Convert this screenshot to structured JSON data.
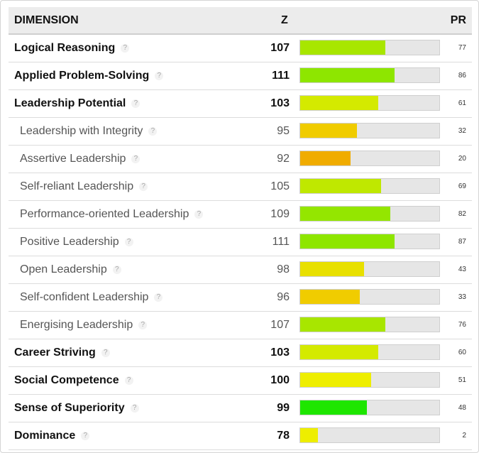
{
  "header": {
    "dimension": "DIMENSION",
    "z": "Z",
    "pr": "PR"
  },
  "help_glyph": "?",
  "rows": [
    {
      "label": "Logical Reasoning",
      "z": "107",
      "pr": "77",
      "pr_fraction": 0.61,
      "color": "#a8e600",
      "type": "main"
    },
    {
      "label": "Applied Problem-Solving",
      "z": "111",
      "pr": "86",
      "pr_fraction": 0.68,
      "color": "#8ee600",
      "type": "main"
    },
    {
      "label": "Leadership Potential",
      "z": "103",
      "pr": "61",
      "pr_fraction": 0.56,
      "color": "#d4ea00",
      "type": "main"
    },
    {
      "label": "Leadership with Integrity",
      "z": "95",
      "pr": "32",
      "pr_fraction": 0.41,
      "color": "#f0cc00",
      "type": "sub"
    },
    {
      "label": "Assertive Leadership",
      "z": "92",
      "pr": "20",
      "pr_fraction": 0.36,
      "color": "#f0ac00",
      "type": "sub"
    },
    {
      "label": "Self-reliant Leadership",
      "z": "105",
      "pr": "69",
      "pr_fraction": 0.58,
      "color": "#bfe800",
      "type": "sub"
    },
    {
      "label": "Performance-oriented Leadership",
      "z": "109",
      "pr": "82",
      "pr_fraction": 0.65,
      "color": "#94e600",
      "type": "sub"
    },
    {
      "label": "Positive Leadership",
      "z": "111",
      "pr": "87",
      "pr_fraction": 0.68,
      "color": "#8ee600",
      "type": "sub"
    },
    {
      "label": "Open Leadership",
      "z": "98",
      "pr": "43",
      "pr_fraction": 0.46,
      "color": "#e8e000",
      "type": "sub"
    },
    {
      "label": "Self-confident Leadership",
      "z": "96",
      "pr": "33",
      "pr_fraction": 0.43,
      "color": "#f0cc00",
      "type": "sub"
    },
    {
      "label": "Energising Leadership",
      "z": "107",
      "pr": "76",
      "pr_fraction": 0.61,
      "color": "#a8e600",
      "type": "sub"
    },
    {
      "label": "Career Striving",
      "z": "103",
      "pr": "60",
      "pr_fraction": 0.56,
      "color": "#d4ea00",
      "type": "main"
    },
    {
      "label": "Social Competence",
      "z": "100",
      "pr": "51",
      "pr_fraction": 0.51,
      "color": "#eeee00",
      "type": "main"
    },
    {
      "label": "Sense of Superiority",
      "z": "99",
      "pr": "48",
      "pr_fraction": 0.48,
      "color": "#1ee600",
      "type": "main"
    },
    {
      "label": "Dominance",
      "z": "78",
      "pr": "2",
      "pr_fraction": 0.13,
      "color": "#eeee00",
      "type": "main"
    }
  ]
}
